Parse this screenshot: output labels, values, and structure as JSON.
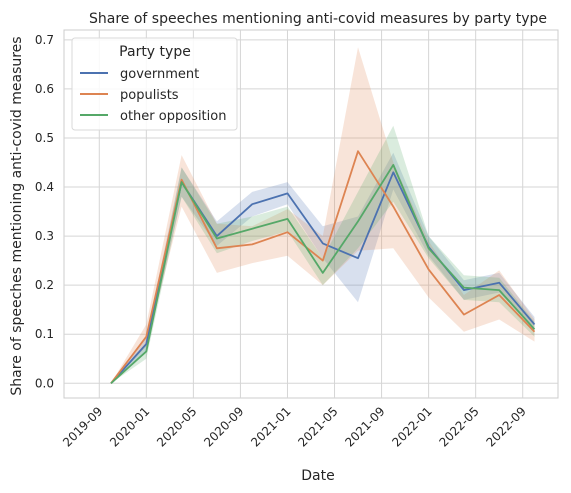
{
  "chart_data": {
    "type": "line",
    "title": "Share of speeches mentioning anti-covid measures by party type",
    "xlabel": "Date",
    "ylabel": "Share of speeches mentioning anti-covid measures",
    "x": [
      "2019-10",
      "2020-01",
      "2020-04",
      "2020-07",
      "2020-10",
      "2021-01",
      "2021-04",
      "2021-07",
      "2021-10",
      "2022-01",
      "2022-04",
      "2022-07",
      "2022-10"
    ],
    "x_tick_labels": [
      "2019-09",
      "2020-01",
      "2020-05",
      "2020-09",
      "2021-01",
      "2021-05",
      "2021-09",
      "2022-01",
      "2022-05",
      "2022-09"
    ],
    "ylim": [
      -0.03,
      0.72
    ],
    "y_ticks": [
      "0.0",
      "0.1",
      "0.2",
      "0.3",
      "0.4",
      "0.5",
      "0.6",
      "0.7"
    ],
    "grid": true,
    "legend": {
      "title": "Party type",
      "placement": "top-left"
    },
    "series": [
      {
        "name": "government",
        "color": "#4c72b0",
        "values": [
          0.0,
          0.08,
          0.41,
          0.3,
          0.365,
          0.387,
          0.285,
          0.255,
          0.43,
          0.278,
          0.19,
          0.205,
          0.12
        ],
        "lower": [
          0.0,
          0.065,
          0.38,
          0.28,
          0.34,
          0.365,
          0.255,
          0.165,
          0.395,
          0.26,
          0.17,
          0.185,
          0.11
        ],
        "upper": [
          0.0,
          0.095,
          0.44,
          0.33,
          0.39,
          0.41,
          0.32,
          0.34,
          0.47,
          0.3,
          0.21,
          0.225,
          0.135
        ]
      },
      {
        "name": "populists",
        "color": "#dd8452",
        "values": [
          0.0,
          0.095,
          0.415,
          0.275,
          0.283,
          0.308,
          0.25,
          0.473,
          0.36,
          0.232,
          0.14,
          0.18,
          0.105
        ],
        "lower": [
          0.0,
          0.075,
          0.36,
          0.225,
          0.245,
          0.26,
          0.2,
          0.27,
          0.275,
          0.175,
          0.105,
          0.13,
          0.085
        ],
        "upper": [
          0.0,
          0.12,
          0.465,
          0.325,
          0.32,
          0.355,
          0.3,
          0.685,
          0.45,
          0.29,
          0.18,
          0.23,
          0.13
        ]
      },
      {
        "name": "other opposition",
        "color": "#55a868",
        "values": [
          0.0,
          0.065,
          0.41,
          0.295,
          0.315,
          0.335,
          0.225,
          0.33,
          0.445,
          0.275,
          0.195,
          0.19,
          0.11
        ],
        "lower": [
          0.0,
          0.05,
          0.38,
          0.265,
          0.29,
          0.31,
          0.2,
          0.275,
          0.37,
          0.255,
          0.17,
          0.165,
          0.095
        ],
        "upper": [
          0.0,
          0.08,
          0.44,
          0.325,
          0.34,
          0.36,
          0.255,
          0.39,
          0.525,
          0.3,
          0.22,
          0.215,
          0.125
        ]
      }
    ]
  }
}
